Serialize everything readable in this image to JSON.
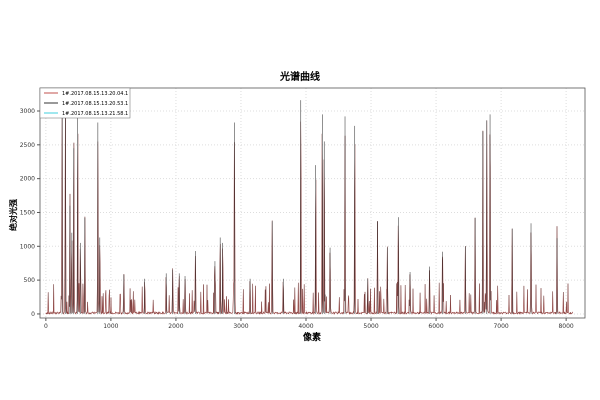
{
  "chart_data": {
    "type": "line",
    "title": "光谱曲线",
    "xlabel": "像素",
    "ylabel": "绝对光强",
    "xlim": [
      -90,
      8290
    ],
    "ylim": [
      -60,
      3340
    ],
    "xticks": [
      0,
      1000,
      2000,
      3000,
      4000,
      5000,
      6000,
      7000,
      8000
    ],
    "yticks": [
      0,
      500,
      1000,
      1500,
      2000,
      2500,
      3000
    ],
    "grid": true,
    "legend_position": "top-left",
    "series": [
      {
        "name": "1#.2017.08.15.13.20.04.1",
        "color": "#c0504d"
      },
      {
        "name": "1#.2017.08.15.13.20.53.1",
        "color": "#333333"
      },
      {
        "name": "1#.2017.08.15.13.21.58.1",
        "color": "#7fdfe8"
      }
    ],
    "peaks": [
      [
        250,
        3300
      ],
      [
        300,
        3300
      ],
      [
        370,
        1600
      ],
      [
        400,
        1200
      ],
      [
        430,
        2450
      ],
      [
        490,
        2950
      ],
      [
        530,
        1050
      ],
      [
        600,
        1420
      ],
      [
        800,
        2830
      ],
      [
        830,
        1130
      ],
      [
        1200,
        580
      ],
      [
        1520,
        520
      ],
      [
        1850,
        600
      ],
      [
        1950,
        650
      ],
      [
        2050,
        600
      ],
      [
        2140,
        560
      ],
      [
        2300,
        930
      ],
      [
        2600,
        780
      ],
      [
        2680,
        1130
      ],
      [
        2720,
        1050
      ],
      [
        2900,
        2830
      ],
      [
        3140,
        520
      ],
      [
        3480,
        1370
      ],
      [
        3650,
        520
      ],
      [
        3920,
        3160
      ],
      [
        4150,
        2200
      ],
      [
        4250,
        2950
      ],
      [
        4280,
        2550
      ],
      [
        4370,
        980
      ],
      [
        4600,
        2920
      ],
      [
        4750,
        2780
      ],
      [
        4950,
        520
      ],
      [
        5100,
        1370
      ],
      [
        5250,
        980
      ],
      [
        5420,
        1430
      ],
      [
        5600,
        620
      ],
      [
        5900,
        700
      ],
      [
        6100,
        920
      ],
      [
        6450,
        1000
      ],
      [
        6600,
        1420
      ],
      [
        6720,
        2700
      ],
      [
        6780,
        2860
      ],
      [
        6830,
        2950
      ],
      [
        7170,
        1260
      ],
      [
        7460,
        1340
      ],
      [
        7860,
        1120
      ]
    ]
  }
}
